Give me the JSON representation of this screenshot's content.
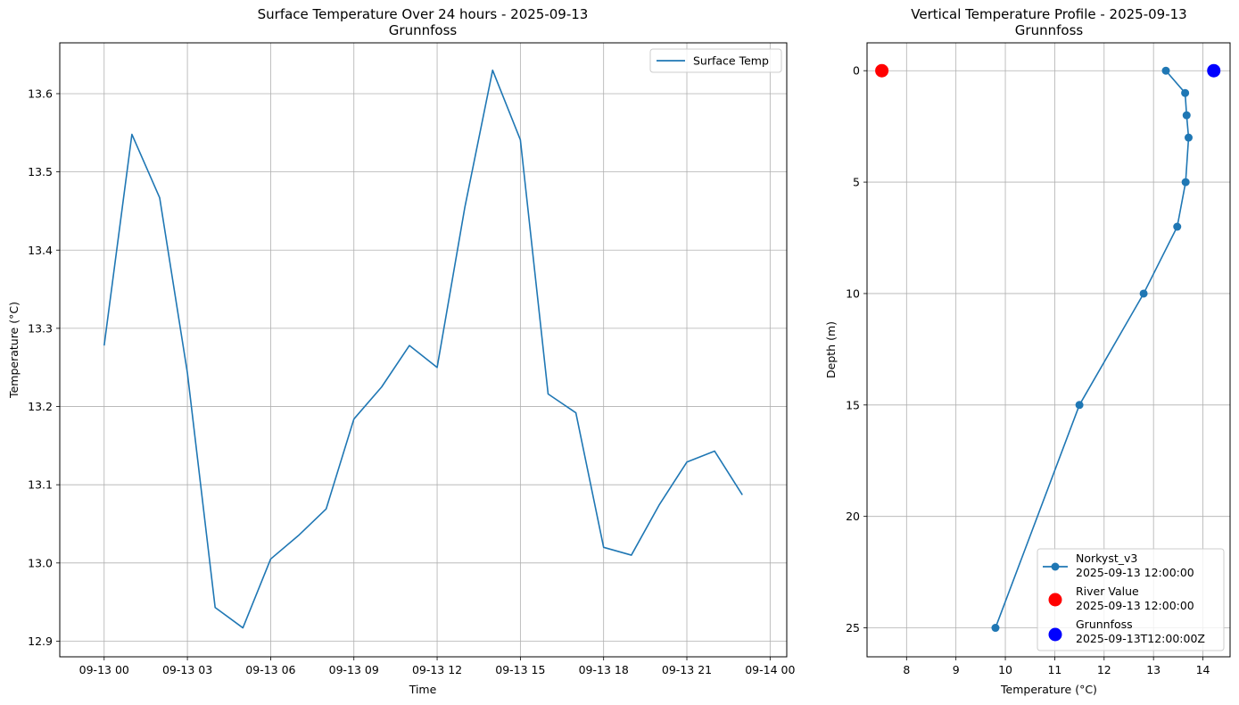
{
  "chart_data": [
    {
      "type": "line",
      "title_line1": "Surface Temperature Over 24 hours - 2025-09-13",
      "title_line2": "Grunnfoss",
      "xlabel": "Time",
      "ylabel": "Temperature (°C)",
      "x_start": "2025-09-13 00:00",
      "x_step_hours": 1,
      "xlim": [
        -1.6,
        24.6
      ],
      "ylim": [
        12.88,
        13.665
      ],
      "grid": true,
      "legend_placement": "top-right",
      "x_ticks": [
        {
          "hour": 0,
          "label": "09-13 00"
        },
        {
          "hour": 3,
          "label": "09-13 03"
        },
        {
          "hour": 6,
          "label": "09-13 06"
        },
        {
          "hour": 9,
          "label": "09-13 09"
        },
        {
          "hour": 12,
          "label": "09-13 12"
        },
        {
          "hour": 15,
          "label": "09-13 15"
        },
        {
          "hour": 18,
          "label": "09-13 18"
        },
        {
          "hour": 21,
          "label": "09-13 21"
        },
        {
          "hour": 24,
          "label": "09-14 00"
        }
      ],
      "y_ticks": [
        {
          "value": 12.9,
          "label": "12.9"
        },
        {
          "value": 13.0,
          "label": "13.0"
        },
        {
          "value": 13.1,
          "label": "13.1"
        },
        {
          "value": 13.2,
          "label": "13.2"
        },
        {
          "value": 13.3,
          "label": "13.3"
        },
        {
          "value": 13.4,
          "label": "13.4"
        },
        {
          "value": 13.5,
          "label": "13.5"
        },
        {
          "value": 13.6,
          "label": "13.6"
        }
      ],
      "series": [
        {
          "name": "Surface Temp",
          "color": "#1f77b4",
          "values": [
            13.278,
            13.548,
            13.467,
            13.243,
            12.943,
            12.917,
            13.005,
            13.035,
            13.069,
            13.184,
            13.225,
            13.278,
            13.25,
            13.455,
            13.63,
            13.541,
            13.216,
            13.192,
            13.02,
            13.01,
            13.074,
            13.129,
            13.143,
            13.087
          ]
        }
      ]
    },
    {
      "type": "line",
      "title_line1": "Vertical Temperature Profile - 2025-09-13",
      "title_line2": "Grunnfoss",
      "xlabel": "Temperature (°C)",
      "ylabel": "Depth (m)",
      "xlim": [
        7.2,
        14.55
      ],
      "ylim": [
        26.3,
        -1.25
      ],
      "y_inverted": true,
      "grid": true,
      "legend_placement": "bottom-right",
      "x_ticks": [
        {
          "value": 8,
          "label": "8"
        },
        {
          "value": 9,
          "label": "9"
        },
        {
          "value": 10,
          "label": "10"
        },
        {
          "value": 11,
          "label": "11"
        },
        {
          "value": 12,
          "label": "12"
        },
        {
          "value": 13,
          "label": "13"
        },
        {
          "value": 14,
          "label": "14"
        }
      ],
      "y_ticks": [
        {
          "value": 0,
          "label": "0"
        },
        {
          "value": 5,
          "label": "5"
        },
        {
          "value": 10,
          "label": "10"
        },
        {
          "value": 15,
          "label": "15"
        },
        {
          "value": 20,
          "label": "20"
        },
        {
          "value": 25,
          "label": "25"
        }
      ],
      "series": [
        {
          "name_line1": "Norkyst_v3",
          "name_line2": "2025-09-13 12:00:00",
          "color": "#1f77b4",
          "marker": "line-with-dots",
          "points": [
            {
              "temp": 13.25,
              "depth": 0
            },
            {
              "temp": 13.64,
              "depth": 1
            },
            {
              "temp": 13.67,
              "depth": 2
            },
            {
              "temp": 13.71,
              "depth": 3
            },
            {
              "temp": 13.65,
              "depth": 5
            },
            {
              "temp": 13.48,
              "depth": 7
            },
            {
              "temp": 12.8,
              "depth": 10
            },
            {
              "temp": 11.5,
              "depth": 15
            },
            {
              "temp": 9.8,
              "depth": 25
            }
          ]
        },
        {
          "name_line1": "River Value",
          "name_line2": "2025-09-13 12:00:00",
          "color": "#ff0000",
          "marker": "big-dot",
          "points": [
            {
              "temp": 7.5,
              "depth": 0
            }
          ]
        },
        {
          "name_line1": "Grunnfoss",
          "name_line2": "2025-09-13T12:00:00Z",
          "color": "#0000ff",
          "marker": "big-dot",
          "points": [
            {
              "temp": 14.22,
              "depth": 0
            }
          ]
        }
      ]
    }
  ]
}
